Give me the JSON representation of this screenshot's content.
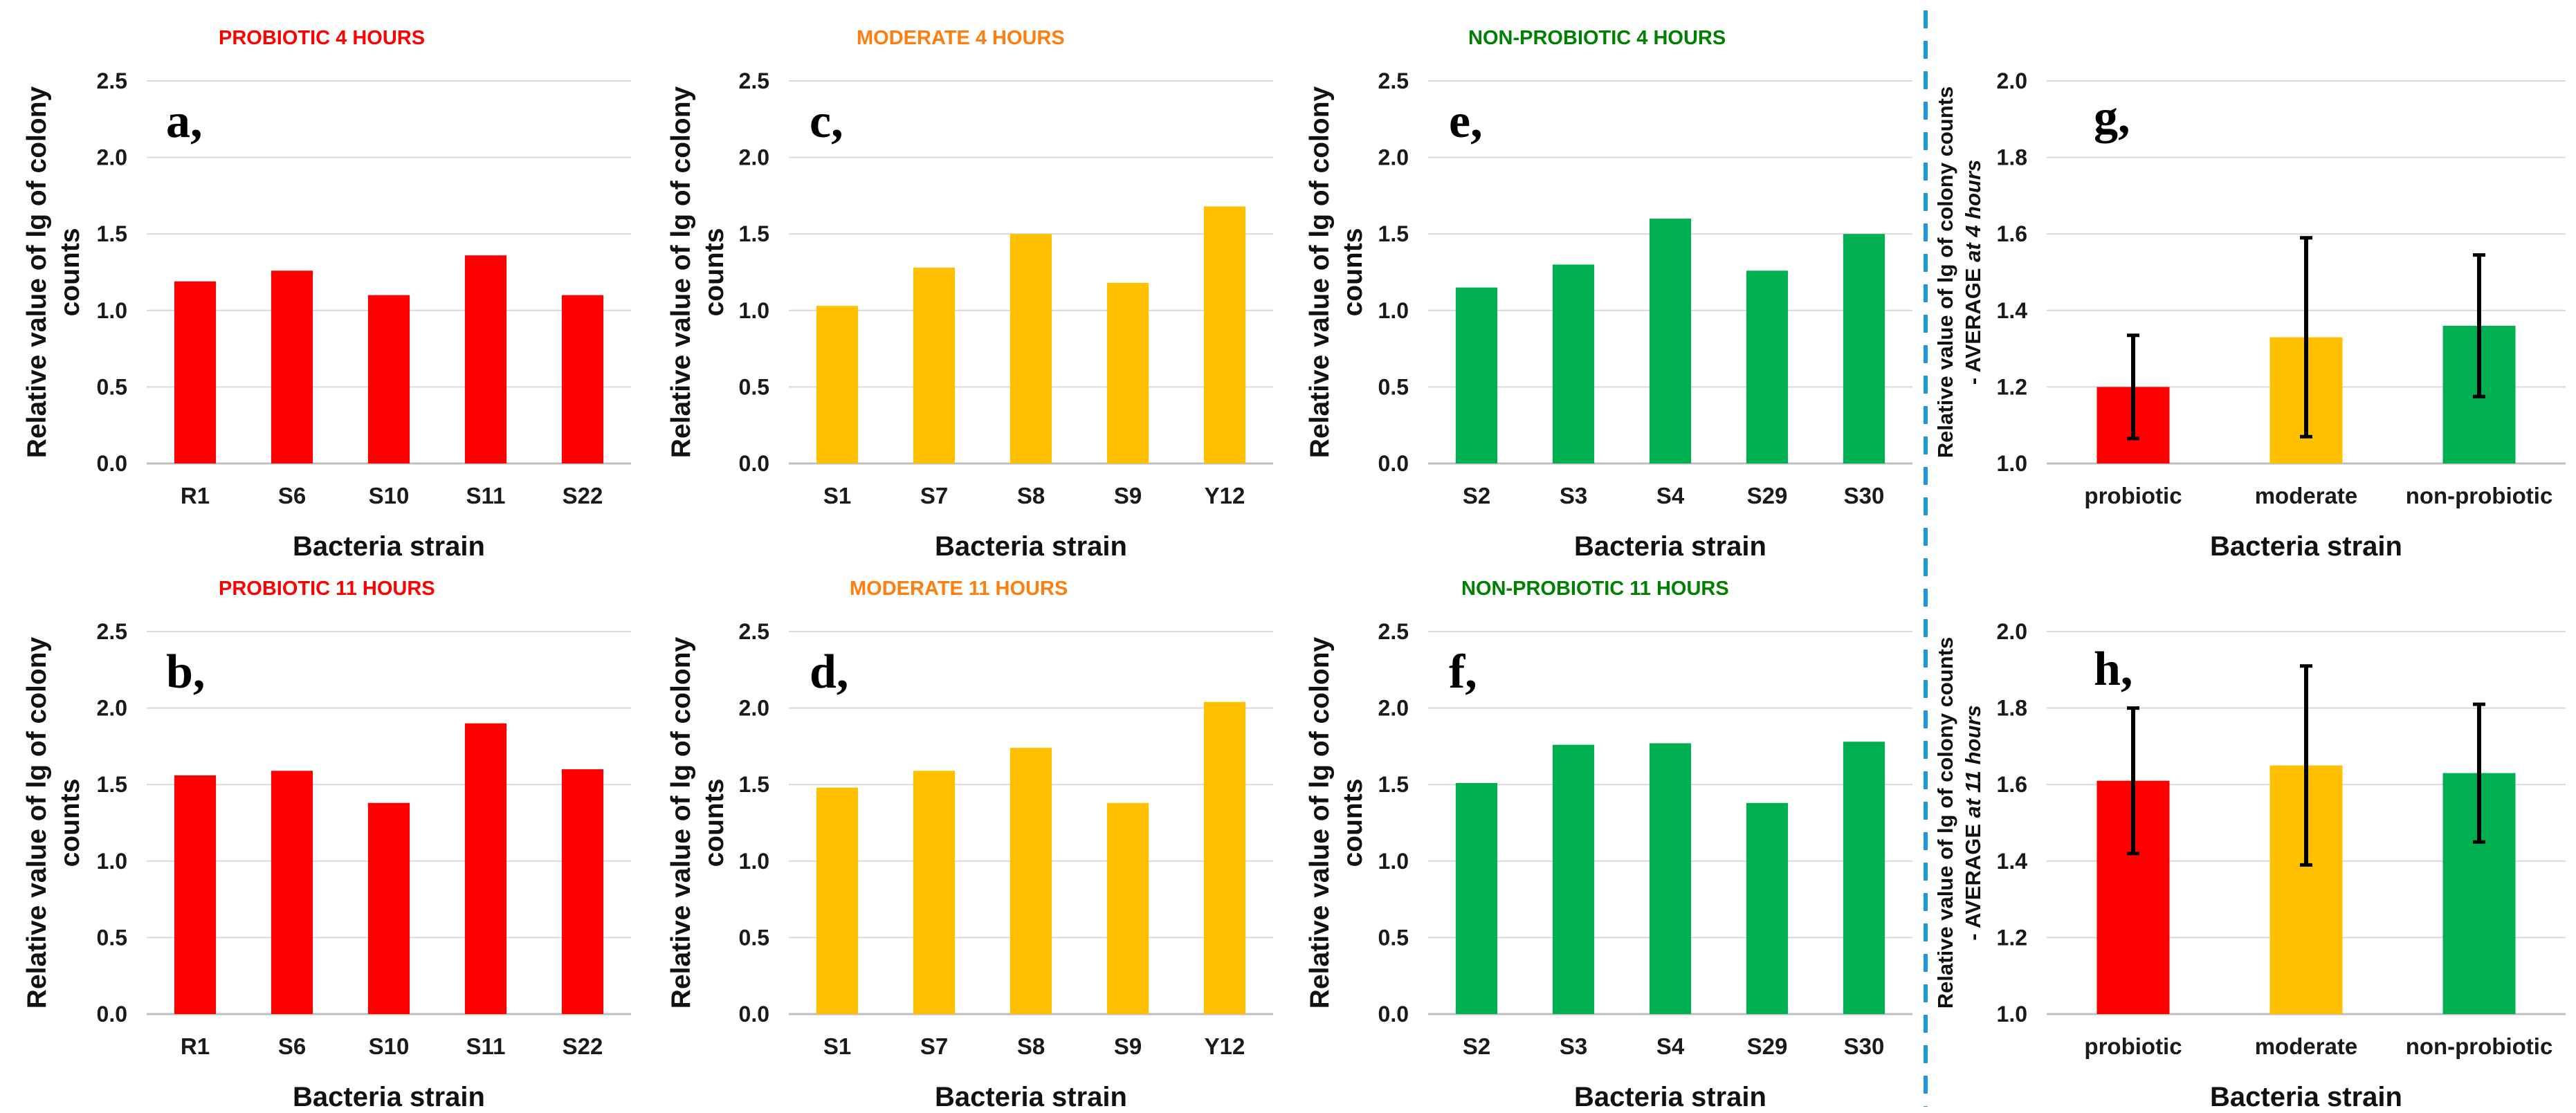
{
  "figure": {
    "separator_color": "#1a9ad6"
  },
  "chart_data": [
    {
      "id": "a",
      "type": "bar",
      "panel_label": "a,",
      "title": "PROBIOTIC 4 HOURS",
      "title_color": "#ff0000",
      "categories": [
        "R1",
        "S6",
        "S10",
        "S11",
        "S22"
      ],
      "values": [
        1.19,
        1.26,
        1.1,
        1.36,
        1.1
      ],
      "color": "#ff0000",
      "xlabel": "Bacteria strain",
      "ylabel": [
        "Relative value of lg of colony",
        "counts"
      ],
      "ylim": [
        0,
        2.5
      ],
      "yticks": [
        "0.0",
        "0.5",
        "1.0",
        "1.5",
        "2.0",
        "2.5"
      ],
      "grid": true
    },
    {
      "id": "b",
      "type": "bar",
      "panel_label": "b,",
      "title": "PROBIOTIC 11 HOURS",
      "title_color": "#ff0000",
      "categories": [
        "R1",
        "S6",
        "S10",
        "S11",
        "S22"
      ],
      "values": [
        1.56,
        1.59,
        1.38,
        1.9,
        1.6
      ],
      "color": "#ff0000",
      "xlabel": "Bacteria strain",
      "ylabel": [
        "Relative value of lg of colony",
        "counts"
      ],
      "ylim": [
        0,
        2.5
      ],
      "yticks": [
        "0.0",
        "0.5",
        "1.0",
        "1.5",
        "2.0",
        "2.5"
      ],
      "grid": true
    },
    {
      "id": "c",
      "type": "bar",
      "panel_label": "c,",
      "title": "MODERATE 4 HOURS",
      "title_color": "#ff7f0e",
      "categories": [
        "S1",
        "S7",
        "S8",
        "S9",
        "Y12"
      ],
      "values": [
        1.03,
        1.28,
        1.5,
        1.18,
        1.68
      ],
      "color": "#ffc000",
      "xlabel": "Bacteria strain",
      "ylabel": [
        "Relative value of lg of colony",
        "counts"
      ],
      "ylim": [
        0,
        2.5
      ],
      "yticks": [
        "0.0",
        "0.5",
        "1.0",
        "1.5",
        "2.0",
        "2.5"
      ],
      "grid": true
    },
    {
      "id": "d",
      "type": "bar",
      "panel_label": "d,",
      "title": "MODERATE 11 HOURS",
      "title_color": "#ff7f0e",
      "categories": [
        "S1",
        "S7",
        "S8",
        "S9",
        "Y12"
      ],
      "values": [
        1.48,
        1.59,
        1.74,
        1.38,
        2.04
      ],
      "color": "#ffc000",
      "xlabel": "Bacteria strain",
      "ylabel": [
        "Relative value of lg of colony",
        "counts"
      ],
      "ylim": [
        0,
        2.5
      ],
      "yticks": [
        "0.0",
        "0.5",
        "1.0",
        "1.5",
        "2.0",
        "2.5"
      ],
      "grid": true
    },
    {
      "id": "e",
      "type": "bar",
      "panel_label": "e,",
      "title": "NON-PROBIOTIC 4 HOURS",
      "title_color": "#008000",
      "categories": [
        "S2",
        "S3",
        "S4",
        "S29",
        "S30"
      ],
      "values": [
        1.15,
        1.3,
        1.6,
        1.26,
        1.5
      ],
      "color": "#00b050",
      "xlabel": "Bacteria strain",
      "ylabel": [
        "Relative value of lg of colony",
        "counts"
      ],
      "ylim": [
        0,
        2.5
      ],
      "yticks": [
        "0.0",
        "0.5",
        "1.0",
        "1.5",
        "2.0",
        "2.5"
      ],
      "grid": true
    },
    {
      "id": "f",
      "type": "bar",
      "panel_label": "f,",
      "title": "NON-PROBIOTIC 11 HOURS",
      "title_color": "#008000",
      "categories": [
        "S2",
        "S3",
        "S4",
        "S29",
        "S30"
      ],
      "values": [
        1.51,
        1.76,
        1.77,
        1.38,
        1.78
      ],
      "color": "#00b050",
      "xlabel": "Bacteria strain",
      "ylabel": [
        "Relative value of lg of colony",
        "counts"
      ],
      "ylim": [
        0,
        2.5
      ],
      "yticks": [
        "0.0",
        "0.5",
        "1.0",
        "1.5",
        "2.0",
        "2.5"
      ],
      "grid": true
    },
    {
      "id": "g",
      "type": "bar",
      "panel_label": "g,",
      "title": "",
      "categories": [
        "probiotic",
        "moderate",
        "non-probiotic"
      ],
      "values": [
        1.2,
        1.33,
        1.36
      ],
      "errors": [
        0.135,
        0.26,
        0.185
      ],
      "colors": [
        "#ff0000",
        "#ffc000",
        "#00b050"
      ],
      "xlabel": "Bacteria strain",
      "ylabel": [
        "Relative value of lg of colony counts",
        "- AVERAGE ",
        "at 4 hours"
      ],
      "ylim": [
        1.0,
        2.0
      ],
      "yticks": [
        "1.0",
        "1.2",
        "1.4",
        "1.6",
        "1.8",
        "2.0"
      ],
      "grid": true
    },
    {
      "id": "h",
      "type": "bar",
      "panel_label": "h,",
      "title": "",
      "categories": [
        "probiotic",
        "moderate",
        "non-probiotic"
      ],
      "values": [
        1.61,
        1.65,
        1.63
      ],
      "errors": [
        0.19,
        0.26,
        0.18
      ],
      "colors": [
        "#ff0000",
        "#ffc000",
        "#00b050"
      ],
      "xlabel": "Bacteria strain",
      "ylabel": [
        "Relative value of lg of colony counts",
        "- AVERAGE ",
        "at 11 hours"
      ],
      "ylim": [
        1.0,
        2.0
      ],
      "yticks": [
        "1.0",
        "1.2",
        "1.4",
        "1.6",
        "1.8",
        "2.0"
      ],
      "grid": true
    }
  ]
}
